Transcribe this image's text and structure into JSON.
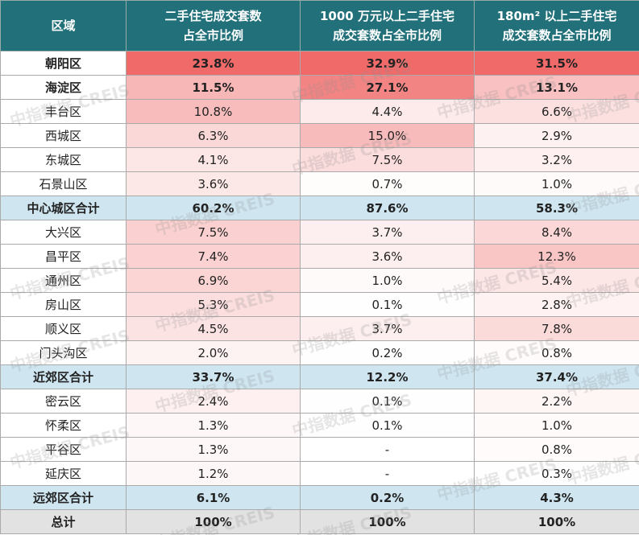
{
  "header": [
    [
      "区域"
    ],
    [
      "二手住宅成交套数",
      "占全市比例"
    ],
    [
      "1000 万元以上二手住宅",
      "成交套数占全市比例"
    ],
    [
      "180m² 以上二手住宅",
      "成交套数占全市比例"
    ]
  ],
  "table": {
    "rows": [
      [
        "朝阳区",
        "23.8%",
        "32.9%",
        "31.5%"
      ],
      [
        "海淀区",
        "11.5%",
        "27.1%",
        "13.1%"
      ],
      [
        "丰台区",
        "10.8%",
        "4.4%",
        "6.6%"
      ],
      [
        "西城区",
        "6.3%",
        "15.0%",
        "2.9%"
      ],
      [
        "东城区",
        "4.1%",
        "7.5%",
        "3.2%"
      ],
      [
        "石景山区",
        "3.6%",
        "0.7%",
        "1.0%"
      ],
      [
        "中心城区合计",
        "60.2%",
        "87.6%",
        "58.3%"
      ],
      [
        "大兴区",
        "7.5%",
        "3.7%",
        "8.4%"
      ],
      [
        "昌平区",
        "7.4%",
        "3.6%",
        "12.3%"
      ],
      [
        "通州区",
        "6.9%",
        "1.0%",
        "5.4%"
      ],
      [
        "房山区",
        "5.3%",
        "0.1%",
        "2.8%"
      ],
      [
        "顺义区",
        "4.5%",
        "3.7%",
        "7.8%"
      ],
      [
        "门头沟区",
        "2.0%",
        "0.2%",
        "0.8%"
      ],
      [
        "近郊区合计",
        "33.7%",
        "12.2%",
        "37.4%"
      ],
      [
        "密云区",
        "2.4%",
        "0.1%",
        "2.2%"
      ],
      [
        "怀柔区",
        "1.3%",
        "0.1%",
        "1.0%"
      ],
      [
        "平谷区",
        "1.3%",
        "-",
        "0.8%"
      ],
      [
        "延庆区",
        "1.2%",
        "-",
        "0.3%"
      ],
      [
        "远郊区合计",
        "6.1%",
        "0.2%",
        "4.3%"
      ],
      [
        "总计",
        "100%",
        "100%",
        "100%"
      ]
    ]
  },
  "watermark": "中指数据 CREIS"
}
